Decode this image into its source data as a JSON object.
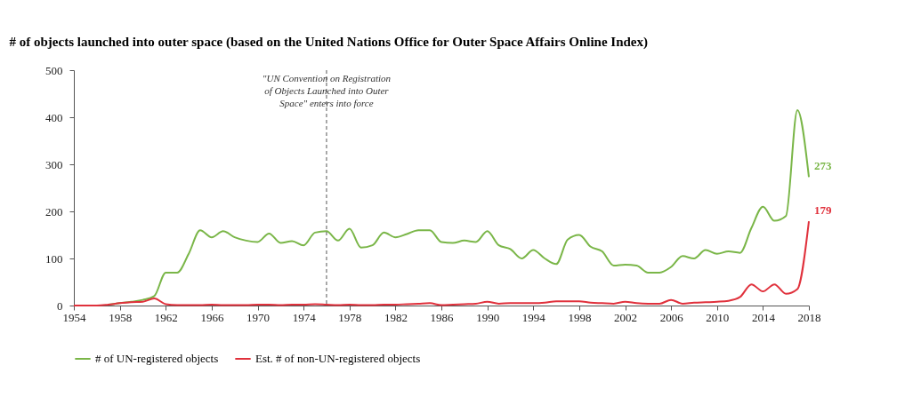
{
  "chart_data": {
    "type": "line",
    "title": "# of objects launched into outer space (based on the United Nations Office for Outer Space Affairs Online Index)",
    "x": [
      1954,
      1955,
      1956,
      1957,
      1958,
      1959,
      1960,
      1961,
      1962,
      1963,
      1964,
      1965,
      1966,
      1967,
      1968,
      1969,
      1970,
      1971,
      1972,
      1973,
      1974,
      1975,
      1976,
      1977,
      1978,
      1979,
      1980,
      1981,
      1982,
      1983,
      1984,
      1985,
      1986,
      1987,
      1988,
      1989,
      1990,
      1991,
      1992,
      1993,
      1994,
      1995,
      1996,
      1997,
      1998,
      1999,
      2000,
      2001,
      2002,
      2003,
      2004,
      2005,
      2006,
      2007,
      2008,
      2009,
      2010,
      2011,
      2012,
      2013,
      2014,
      2015,
      2016,
      2017,
      2018
    ],
    "series": [
      {
        "name": "# of UN-registered objects",
        "color": "#7ab648",
        "values": [
          null,
          null,
          null,
          2,
          5,
          8,
          12,
          20,
          70,
          70,
          110,
          160,
          145,
          158,
          145,
          138,
          135,
          153,
          133,
          137,
          128,
          155,
          158,
          138,
          163,
          123,
          128,
          155,
          145,
          152,
          160,
          160,
          135,
          133,
          138,
          135,
          158,
          128,
          120,
          100,
          118,
          100,
          88,
          140,
          150,
          125,
          115,
          85,
          87,
          85,
          70,
          70,
          82,
          105,
          100,
          118,
          110,
          115,
          112,
          165,
          210,
          180,
          190,
          415,
          273
        ],
        "value_labels": [
          null,
          null,
          null,
          null,
          null,
          null,
          null,
          null,
          null,
          null,
          null,
          null,
          null,
          null,
          null,
          null,
          null,
          null,
          null,
          null,
          null,
          null,
          null,
          null,
          null,
          null,
          null,
          null,
          null,
          null,
          null,
          null,
          null,
          null,
          null,
          null,
          null,
          null,
          null,
          null,
          null,
          null,
          null,
          null,
          null,
          null,
          null,
          null,
          null,
          null,
          null,
          null,
          null,
          null,
          null,
          null,
          null,
          null,
          null,
          null,
          null,
          null,
          null,
          null,
          "273"
        ]
      },
      {
        "name": "Est. # of non-UN-registered objects",
        "color": "#e0313c",
        "values": [
          0,
          0,
          0,
          2,
          5,
          7,
          8,
          15,
          3,
          1,
          1,
          1,
          2,
          1,
          1,
          1,
          2,
          2,
          1,
          2,
          2,
          3,
          2,
          1,
          2,
          1,
          1,
          2,
          2,
          3,
          4,
          5,
          1,
          2,
          3,
          4,
          8,
          4,
          5,
          5,
          5,
          6,
          9,
          9,
          9,
          6,
          5,
          4,
          8,
          5,
          4,
          4,
          12,
          4,
          6,
          7,
          8,
          10,
          18,
          45,
          30,
          45,
          25,
          35,
          179
        ],
        "value_labels": [
          null,
          null,
          null,
          null,
          null,
          null,
          null,
          null,
          null,
          null,
          null,
          null,
          null,
          null,
          null,
          null,
          null,
          null,
          null,
          null,
          null,
          null,
          null,
          null,
          null,
          null,
          null,
          null,
          null,
          null,
          null,
          null,
          null,
          null,
          null,
          null,
          null,
          null,
          null,
          null,
          null,
          null,
          null,
          null,
          null,
          null,
          null,
          null,
          null,
          null,
          null,
          null,
          null,
          null,
          null,
          null,
          null,
          null,
          null,
          null,
          null,
          null,
          null,
          null,
          "179"
        ]
      }
    ],
    "xlim": [
      1954,
      2018
    ],
    "xticks": [
      1954,
      1958,
      1962,
      1966,
      1970,
      1974,
      1978,
      1982,
      1986,
      1990,
      1994,
      1998,
      2002,
      2006,
      2010,
      2014,
      2018
    ],
    "ylim": [
      0,
      500
    ],
    "yticks": [
      0,
      100,
      200,
      300,
      400,
      500
    ],
    "grid": false,
    "legend": "bottom",
    "line_style": "solid",
    "marker": "none",
    "ref_lines": [
      {
        "axis": "x",
        "value": 1976,
        "label": "\"UN Convention on Registration\nof Objects Launched into Outer\nSpace\" enters into force",
        "color": "#555555",
        "line_style": "dashed"
      }
    ]
  }
}
